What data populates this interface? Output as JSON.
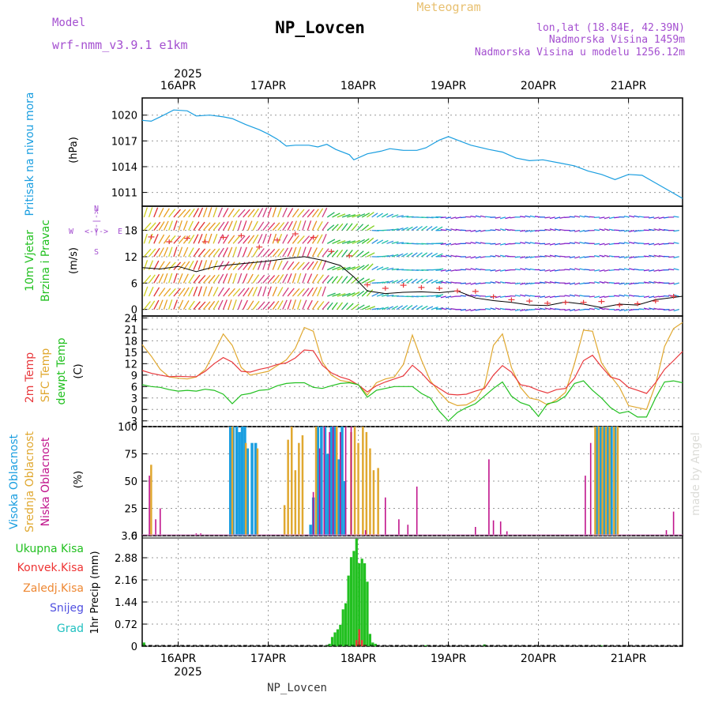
{
  "header": {
    "model_label": "Model",
    "model_name": "wrf-nmm_v3.9.1 e1km",
    "station": "NP_Lovcen",
    "title": "Meteogram",
    "coords": "lon,lat (18.84E, 42.39N)",
    "elevation": "Nadmorska Visina 1459m",
    "model_elevation": "Nadmorska Visina u modelu 1256.12m"
  },
  "time_axis": {
    "year": "2025",
    "days": [
      "16APR",
      "17APR",
      "18APR",
      "19APR",
      "20APR",
      "21APR"
    ],
    "range_days": [
      15.6,
      21.6
    ]
  },
  "footer": {
    "station": "NP_Lovcen",
    "credit": "made by Angel"
  },
  "colors": {
    "pressure": "#1a9ee0",
    "wind_label": "#22c020",
    "red": "#e8383c",
    "orange": "#e0a830",
    "green": "#22c020",
    "high_cloud": "#1a9ee0",
    "mid_cloud": "#e0a830",
    "low_cloud": "#c0148c",
    "conv": "#ee3333",
    "frozen": "#ee8833",
    "snow": "#5050e0",
    "hail": "#20c0c0",
    "purple": "#9a30c8"
  },
  "panels": {
    "pressure": {
      "title": "Pritisak na nivou mora",
      "unit": "(hPa)",
      "ticks": [
        "1020",
        "1017",
        "1014",
        "1011"
      ]
    },
    "wind": {
      "title1": "10m Vjetar",
      "title2": "Brzina i Pravac",
      "unit": "(m/s)",
      "ticks": [
        "18",
        "12",
        "6",
        "0"
      ],
      "legend": {
        "n": "N",
        "e": "E",
        "w": "W",
        "s": "S",
        "arrow_ns": "<-|->",
        "arrow_we": "<-|->"
      }
    },
    "temp": {
      "label_2m": "2m Temp",
      "label_sfc": "SFC Temp",
      "label_dew": "dewpt Temp",
      "unit": "(C)",
      "ticks": [
        "24",
        "21",
        "18",
        "15",
        "12",
        "9",
        "6",
        "3",
        "0",
        "-3"
      ]
    },
    "cloud": {
      "label_high": "Visoka Oblacnost",
      "label_mid": "Srednja Oblacnost",
      "label_low": "Niska Oblacnost",
      "unit": "(%)",
      "ticks": [
        "100",
        "75",
        "50",
        "25",
        "0"
      ]
    },
    "precip": {
      "labels": [
        "Ukupna Kisa",
        "Konvek.Kisa",
        "Zaledj.Kisa",
        "Snijeg",
        "Grad"
      ],
      "unit": "1hr Precip (mm)",
      "ticks": [
        "3.6",
        "2.88",
        "2.16",
        "1.44",
        "0.72",
        "0"
      ]
    }
  },
  "chart_data": [
    {
      "type": "line",
      "name": "pressure",
      "ylabel": "Pritisak na nivou mora (hPa)",
      "ylim": [
        1009.4,
        1022.0
      ],
      "x": [
        15.6,
        15.7,
        15.8,
        15.95,
        16.1,
        16.2,
        16.35,
        16.5,
        16.6,
        16.75,
        16.9,
        17.0,
        17.1,
        17.2,
        17.3,
        17.45,
        17.55,
        17.65,
        17.75,
        17.9,
        17.95,
        18.1,
        18.25,
        18.35,
        18.5,
        18.65,
        18.75,
        18.85,
        18.9,
        19.0,
        19.1,
        19.25,
        19.45,
        19.6,
        19.75,
        19.9,
        20.05,
        20.25,
        20.4,
        20.55,
        20.7,
        20.85,
        21.0,
        21.15,
        21.3,
        21.45,
        21.6
      ],
      "y": [
        1019.4,
        1019.3,
        1019.8,
        1020.6,
        1020.5,
        1019.9,
        1020.0,
        1019.8,
        1019.6,
        1018.9,
        1018.3,
        1017.8,
        1017.2,
        1016.4,
        1016.5,
        1016.5,
        1016.3,
        1016.6,
        1016.0,
        1015.4,
        1014.8,
        1015.5,
        1015.8,
        1016.1,
        1015.9,
        1015.9,
        1016.2,
        1016.8,
        1017.1,
        1017.5,
        1017.1,
        1016.5,
        1016.0,
        1015.7,
        1015.0,
        1014.7,
        1014.8,
        1014.4,
        1014.1,
        1013.5,
        1013.1,
        1012.5,
        1013.1,
        1013.0,
        1012.1,
        1011.2,
        1010.3
      ]
    },
    {
      "type": "line",
      "name": "wind_speed",
      "ylabel": "10m Vjetar Brzina i Pravac (m/s)",
      "ylim": [
        -1.5,
        23.5
      ],
      "x": [
        15.6,
        15.8,
        16.0,
        16.2,
        16.4,
        16.6,
        16.8,
        17.0,
        17.2,
        17.4,
        17.6,
        17.8,
        17.95,
        18.1,
        18.3,
        18.5,
        18.7,
        18.9,
        19.1,
        19.3,
        19.5,
        19.7,
        19.9,
        20.1,
        20.3,
        20.5,
        20.7,
        20.9,
        21.1,
        21.3,
        21.6
      ],
      "y": [
        9.5,
        9.2,
        9.8,
        8.6,
        9.7,
        10.2,
        10.6,
        11.0,
        11.6,
        12.0,
        11.2,
        10.0,
        7.4,
        4.2,
        3.6,
        3.9,
        4.0,
        3.8,
        4.2,
        2.6,
        2.0,
        1.6,
        1.0,
        0.9,
        1.7,
        1.2,
        0.4,
        1.2,
        1.0,
        2.2,
        3.0
      ],
      "gust_x": [
        15.7,
        15.9,
        16.1,
        16.3,
        16.5,
        16.7,
        16.9,
        17.1,
        17.3,
        17.5,
        17.7,
        17.9,
        18.1,
        18.3,
        18.5,
        18.7,
        18.9,
        19.1,
        19.3,
        19.5,
        19.7,
        19.9,
        20.1,
        20.3,
        20.5,
        20.7,
        20.9,
        21.1,
        21.3,
        21.5
      ],
      "gust_y": [
        16.5,
        15.4,
        16.2,
        15.4,
        16.4,
        16.8,
        14.2,
        15.8,
        17.2,
        16.4,
        13.2,
        12.2,
        5.6,
        4.8,
        5.5,
        5.0,
        4.8,
        4.2,
        4.1,
        2.9,
        2.2,
        1.9,
        1.4,
        1.6,
        1.6,
        1.8,
        1.0,
        1.3,
        1.9,
        3.0
      ]
    },
    {
      "type": "line",
      "name": "temperature",
      "ylabel": "Temp (C)",
      "ylim": [
        -4.5,
        24.5
      ],
      "x": [
        15.6,
        15.7,
        15.8,
        15.9,
        16.0,
        16.1,
        16.2,
        16.3,
        16.4,
        16.5,
        16.6,
        16.7,
        16.8,
        16.9,
        17.0,
        17.1,
        17.2,
        17.3,
        17.4,
        17.5,
        17.6,
        17.7,
        17.8,
        17.9,
        18.0,
        18.1,
        18.2,
        18.3,
        18.4,
        18.5,
        18.6,
        18.7,
        18.8,
        18.9,
        19.0,
        19.1,
        19.2,
        19.3,
        19.4,
        19.5,
        19.6,
        19.7,
        19.8,
        19.9,
        20.0,
        20.1,
        20.2,
        20.3,
        20.4,
        20.5,
        20.6,
        20.7,
        20.8,
        20.9,
        21.0,
        21.1,
        21.2,
        21.3,
        21.4,
        21.5,
        21.6
      ],
      "series": [
        {
          "name": "2m Temp",
          "values": [
            10.2,
            9.5,
            9.0,
            8.6,
            8.7,
            8.6,
            8.6,
            10.0,
            12.0,
            13.6,
            12.4,
            10.0,
            9.8,
            10.5,
            11.0,
            11.8,
            12.2,
            13.5,
            15.6,
            15.4,
            11.6,
            9.6,
            8.5,
            7.8,
            6.4,
            4.6,
            6.2,
            7.2,
            8.0,
            8.8,
            11.6,
            9.6,
            7.0,
            5.5,
            4.0,
            3.8,
            4.0,
            4.8,
            5.5,
            9.0,
            11.5,
            9.8,
            6.5,
            6.0,
            5.0,
            4.3,
            5.2,
            5.5,
            8.2,
            12.8,
            14.2,
            11.2,
            8.5,
            7.8,
            5.8,
            5.0,
            4.2,
            7.0,
            10.5,
            12.8,
            15.2
          ]
        },
        {
          "name": "SFC Temp",
          "values": [
            17.0,
            14.0,
            10.5,
            8.5,
            8.2,
            8.0,
            8.5,
            10.5,
            15.0,
            19.8,
            16.8,
            11.0,
            9.0,
            9.5,
            10.0,
            11.5,
            13.0,
            16.0,
            21.5,
            20.5,
            12.5,
            9.0,
            7.6,
            7.2,
            6.5,
            3.8,
            7.0,
            8.0,
            8.5,
            11.8,
            19.5,
            13.0,
            7.5,
            4.5,
            2.0,
            1.0,
            1.2,
            2.5,
            6.0,
            16.8,
            19.8,
            11.0,
            5.8,
            3.0,
            2.5,
            1.2,
            2.5,
            4.5,
            12.0,
            20.8,
            20.5,
            12.2,
            8.8,
            5.8,
            1.0,
            0.5,
            0.0,
            6.5,
            16.5,
            21.2,
            22.8
          ]
        },
        {
          "name": "dewpt Temp",
          "values": [
            6.5,
            6.0,
            5.8,
            5.2,
            4.8,
            5.0,
            4.8,
            5.3,
            5.0,
            4.0,
            1.5,
            3.8,
            4.2,
            5.0,
            5.2,
            6.2,
            6.8,
            7.0,
            7.0,
            5.8,
            5.5,
            6.2,
            6.8,
            7.0,
            6.5,
            3.2,
            5.0,
            5.5,
            6.0,
            6.0,
            6.0,
            4.2,
            3.0,
            -0.5,
            -3.0,
            -0.8,
            0.5,
            1.5,
            3.5,
            5.5,
            7.2,
            3.5,
            1.8,
            1.0,
            -1.8,
            1.5,
            2.0,
            3.5,
            6.8,
            7.5,
            5.0,
            3.0,
            0.5,
            -1.0,
            -0.5,
            -2.0,
            -2.0,
            3.0,
            7.2,
            7.5,
            7.0
          ]
        }
      ]
    },
    {
      "type": "bar",
      "name": "cloud_cover",
      "ylabel": "Oblacnost (%)",
      "ylim": [
        0,
        100
      ],
      "series": [
        {
          "name": "Visoka Oblacnost",
          "x": [
            16.58,
            16.61,
            16.65,
            16.68,
            16.71,
            16.74,
            16.77,
            16.82,
            16.86,
            17.55,
            17.59,
            17.63,
            17.66,
            17.7,
            17.74,
            17.78,
            17.82,
            17.85,
            17.5,
            17.47,
            20.65,
            20.69,
            20.73,
            20.77,
            20.81,
            20.85
          ],
          "values": [
            100,
            100,
            100,
            95,
            100,
            100,
            80,
            85,
            85,
            100,
            100,
            100,
            75,
            100,
            100,
            70,
            100,
            50,
            35,
            10,
            100,
            100,
            100,
            100,
            100,
            100
          ]
        },
        {
          "name": "Srednja Oblacnost",
          "x": [
            15.7,
            16.6,
            16.75,
            16.88,
            17.18,
            17.22,
            17.26,
            17.3,
            17.34,
            17.38,
            17.53,
            17.76,
            17.92,
            17.96,
            18.0,
            18.05,
            18.09,
            18.13,
            18.17,
            18.22,
            20.63,
            20.67,
            20.71,
            20.75,
            20.79,
            20.84,
            20.88
          ],
          "values": [
            65,
            100,
            85,
            80,
            28,
            88,
            100,
            60,
            85,
            92,
            100,
            100,
            95,
            100,
            85,
            100,
            95,
            80,
            60,
            62,
            100,
            100,
            100,
            100,
            100,
            100,
            100
          ]
        },
        {
          "name": "Niska Oblacnost",
          "x": [
            15.68,
            15.75,
            15.8,
            16.2,
            16.25,
            17.5,
            17.57,
            17.62,
            17.68,
            17.72,
            17.8,
            17.86,
            17.92,
            18.08,
            18.3,
            18.45,
            18.55,
            18.65,
            19.3,
            19.45,
            19.5,
            19.58,
            19.65,
            20.52,
            20.58,
            21.42,
            21.5
          ],
          "values": [
            55,
            15,
            25,
            2,
            2,
            40,
            80,
            100,
            95,
            100,
            95,
            100,
            100,
            5,
            35,
            15,
            10,
            45,
            8,
            70,
            14,
            13,
            4,
            55,
            85,
            5,
            22
          ]
        }
      ]
    },
    {
      "type": "bar",
      "name": "precipitation",
      "ylabel": "1hr Precip (mm)",
      "ylim": [
        0,
        3.6
      ],
      "x": [
        15.62,
        17.65,
        17.68,
        17.71,
        17.74,
        17.77,
        17.8,
        17.83,
        17.86,
        17.89,
        17.92,
        17.95,
        17.98,
        18.01,
        18.04,
        18.07,
        18.1,
        18.13,
        18.16,
        18.19,
        18.75,
        19.4,
        20.7
      ],
      "series": [
        {
          "name": "Ukupna Kisa",
          "values": [
            0.12,
            0.03,
            0.08,
            0.3,
            0.45,
            0.55,
            0.7,
            1.2,
            1.4,
            2.3,
            2.9,
            3.1,
            3.5,
            2.7,
            2.85,
            2.7,
            2.1,
            0.4,
            0.12,
            0.08,
            0.03,
            0.06,
            0.02
          ]
        },
        {
          "name": "Konvek.Kisa",
          "values": [
            0,
            0,
            0,
            0,
            0,
            0,
            0,
            0,
            0,
            0,
            0,
            0,
            0.2,
            0.55,
            0.2,
            0.05,
            0,
            0,
            0,
            0,
            0,
            0,
            0
          ]
        }
      ]
    }
  ]
}
